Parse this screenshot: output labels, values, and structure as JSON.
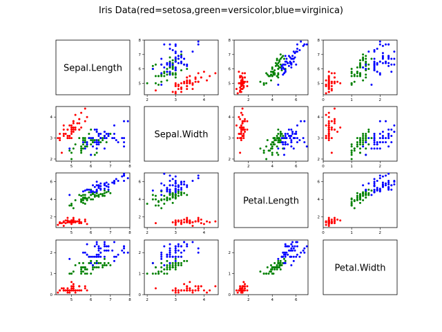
{
  "chart_data": {
    "type": "scatter",
    "title": "Iris Data(red=setosa,green=versicolor,blue=virginica)",
    "variables": [
      {
        "name": "Sepal.Length",
        "range": [
          4.2,
          8.0
        ],
        "ticks": [
          5,
          6,
          7,
          8
        ]
      },
      {
        "name": "Sepal.Width",
        "range": [
          1.9,
          4.5
        ],
        "ticks": [
          2,
          3,
          4
        ]
      },
      {
        "name": "Petal.Length",
        "range": [
          0.8,
          7.0
        ],
        "ticks": [
          2,
          4,
          6
        ]
      },
      {
        "name": "Petal.Width",
        "range": [
          0.0,
          2.6
        ],
        "ticks": [
          0,
          1,
          2
        ]
      }
    ],
    "species_colors": {
      "setosa": "#ff0000",
      "versicolor": "#008000",
      "virginica": "#0000ff"
    },
    "series": [
      {
        "name": "setosa",
        "color": "#ff0000",
        "rows": [
          [
            5.1,
            3.5,
            1.4,
            0.2
          ],
          [
            4.9,
            3.0,
            1.4,
            0.2
          ],
          [
            4.7,
            3.2,
            1.3,
            0.2
          ],
          [
            4.6,
            3.1,
            1.5,
            0.2
          ],
          [
            5.0,
            3.6,
            1.4,
            0.2
          ],
          [
            5.4,
            3.9,
            1.7,
            0.4
          ],
          [
            4.6,
            3.4,
            1.4,
            0.3
          ],
          [
            5.0,
            3.4,
            1.5,
            0.2
          ],
          [
            4.4,
            2.9,
            1.4,
            0.2
          ],
          [
            4.9,
            3.1,
            1.5,
            0.1
          ],
          [
            5.4,
            3.7,
            1.5,
            0.2
          ],
          [
            4.8,
            3.4,
            1.6,
            0.2
          ],
          [
            4.8,
            3.0,
            1.4,
            0.1
          ],
          [
            4.3,
            3.0,
            1.1,
            0.1
          ],
          [
            5.8,
            4.0,
            1.2,
            0.2
          ],
          [
            5.7,
            4.4,
            1.5,
            0.4
          ],
          [
            5.4,
            3.9,
            1.3,
            0.4
          ],
          [
            5.1,
            3.5,
            1.4,
            0.3
          ],
          [
            5.7,
            3.8,
            1.7,
            0.3
          ],
          [
            5.1,
            3.8,
            1.5,
            0.3
          ],
          [
            5.4,
            3.4,
            1.7,
            0.2
          ],
          [
            5.1,
            3.7,
            1.5,
            0.4
          ],
          [
            4.6,
            3.6,
            1.0,
            0.2
          ],
          [
            5.1,
            3.3,
            1.7,
            0.5
          ],
          [
            4.8,
            3.4,
            1.9,
            0.2
          ],
          [
            5.0,
            3.0,
            1.6,
            0.2
          ],
          [
            5.0,
            3.4,
            1.6,
            0.4
          ],
          [
            5.2,
            3.5,
            1.5,
            0.2
          ],
          [
            5.2,
            3.4,
            1.4,
            0.2
          ],
          [
            4.7,
            3.2,
            1.6,
            0.2
          ],
          [
            4.8,
            3.1,
            1.6,
            0.2
          ],
          [
            5.4,
            3.4,
            1.5,
            0.4
          ],
          [
            5.2,
            4.1,
            1.5,
            0.1
          ],
          [
            5.5,
            4.2,
            1.4,
            0.2
          ],
          [
            4.9,
            3.1,
            1.5,
            0.2
          ],
          [
            5.0,
            3.2,
            1.2,
            0.2
          ],
          [
            5.5,
            3.5,
            1.3,
            0.2
          ],
          [
            4.9,
            3.6,
            1.4,
            0.1
          ],
          [
            4.4,
            3.0,
            1.3,
            0.2
          ],
          [
            5.1,
            3.4,
            1.5,
            0.2
          ],
          [
            5.0,
            3.5,
            1.3,
            0.3
          ],
          [
            4.5,
            2.3,
            1.3,
            0.3
          ],
          [
            4.4,
            3.2,
            1.3,
            0.2
          ],
          [
            5.0,
            3.5,
            1.6,
            0.6
          ],
          [
            5.1,
            3.8,
            1.9,
            0.4
          ],
          [
            4.8,
            3.0,
            1.4,
            0.3
          ],
          [
            5.1,
            3.8,
            1.6,
            0.2
          ],
          [
            4.6,
            3.2,
            1.4,
            0.2
          ],
          [
            5.3,
            3.7,
            1.5,
            0.2
          ],
          [
            5.0,
            3.3,
            1.4,
            0.2
          ]
        ]
      },
      {
        "name": "versicolor",
        "color": "#008000",
        "rows": [
          [
            7.0,
            3.2,
            4.7,
            1.4
          ],
          [
            6.4,
            3.2,
            4.5,
            1.5
          ],
          [
            6.9,
            3.1,
            4.9,
            1.5
          ],
          [
            5.5,
            2.3,
            4.0,
            1.3
          ],
          [
            6.5,
            2.8,
            4.6,
            1.5
          ],
          [
            5.7,
            2.8,
            4.5,
            1.3
          ],
          [
            6.3,
            3.3,
            4.7,
            1.6
          ],
          [
            4.9,
            2.4,
            3.3,
            1.0
          ],
          [
            6.6,
            2.9,
            4.6,
            1.3
          ],
          [
            5.2,
            2.7,
            3.9,
            1.4
          ],
          [
            5.0,
            2.0,
            3.5,
            1.0
          ],
          [
            5.9,
            3.0,
            4.2,
            1.5
          ],
          [
            6.0,
            2.2,
            4.0,
            1.0
          ],
          [
            6.1,
            2.9,
            4.7,
            1.4
          ],
          [
            5.6,
            2.9,
            3.6,
            1.3
          ],
          [
            6.7,
            3.1,
            4.4,
            1.4
          ],
          [
            5.6,
            3.0,
            4.5,
            1.5
          ],
          [
            5.8,
            2.7,
            4.1,
            1.0
          ],
          [
            6.2,
            2.2,
            4.5,
            1.5
          ],
          [
            5.6,
            2.5,
            3.9,
            1.1
          ],
          [
            5.9,
            3.2,
            4.8,
            1.8
          ],
          [
            6.1,
            2.8,
            4.0,
            1.3
          ],
          [
            6.3,
            2.5,
            4.9,
            1.5
          ],
          [
            6.1,
            2.8,
            4.7,
            1.2
          ],
          [
            6.4,
            2.9,
            4.3,
            1.3
          ],
          [
            6.6,
            3.0,
            4.4,
            1.4
          ],
          [
            6.8,
            2.8,
            4.8,
            1.4
          ],
          [
            6.7,
            3.0,
            5.0,
            1.7
          ],
          [
            6.0,
            2.9,
            4.5,
            1.5
          ],
          [
            5.7,
            2.6,
            3.5,
            1.0
          ],
          [
            5.5,
            2.4,
            3.8,
            1.1
          ],
          [
            5.5,
            2.4,
            3.7,
            1.0
          ],
          [
            5.8,
            2.7,
            3.9,
            1.2
          ],
          [
            6.0,
            2.7,
            5.1,
            1.6
          ],
          [
            5.4,
            3.0,
            4.5,
            1.5
          ],
          [
            6.0,
            3.4,
            4.5,
            1.6
          ],
          [
            6.7,
            3.1,
            4.7,
            1.5
          ],
          [
            6.3,
            2.3,
            4.4,
            1.3
          ],
          [
            5.6,
            3.0,
            4.1,
            1.3
          ],
          [
            5.5,
            2.5,
            4.0,
            1.3
          ],
          [
            5.5,
            2.6,
            4.4,
            1.2
          ],
          [
            6.1,
            3.0,
            4.6,
            1.4
          ],
          [
            5.8,
            2.6,
            4.0,
            1.2
          ],
          [
            5.0,
            2.3,
            3.3,
            1.0
          ],
          [
            5.6,
            2.7,
            4.2,
            1.3
          ],
          [
            5.7,
            3.0,
            4.2,
            1.2
          ],
          [
            5.7,
            2.9,
            4.2,
            1.3
          ],
          [
            6.2,
            2.9,
            4.3,
            1.3
          ],
          [
            5.1,
            2.5,
            3.0,
            1.1
          ],
          [
            5.7,
            2.8,
            4.1,
            1.3
          ]
        ]
      },
      {
        "name": "virginica",
        "color": "#0000ff",
        "rows": [
          [
            6.3,
            3.3,
            6.0,
            2.5
          ],
          [
            5.8,
            2.7,
            5.1,
            1.9
          ],
          [
            7.1,
            3.0,
            5.9,
            2.1
          ],
          [
            6.3,
            2.9,
            5.6,
            1.8
          ],
          [
            6.5,
            3.0,
            5.8,
            2.2
          ],
          [
            7.6,
            3.0,
            6.6,
            2.1
          ],
          [
            4.9,
            2.5,
            4.5,
            1.7
          ],
          [
            7.3,
            2.9,
            6.3,
            1.8
          ],
          [
            6.7,
            2.5,
            5.8,
            1.8
          ],
          [
            7.2,
            3.6,
            6.1,
            2.5
          ],
          [
            6.5,
            3.2,
            5.1,
            2.0
          ],
          [
            6.4,
            2.7,
            5.3,
            1.9
          ],
          [
            6.8,
            3.0,
            5.5,
            2.1
          ],
          [
            5.7,
            2.5,
            5.0,
            2.0
          ],
          [
            5.8,
            2.8,
            5.1,
            2.4
          ],
          [
            6.4,
            3.2,
            5.3,
            2.3
          ],
          [
            6.5,
            3.0,
            5.5,
            1.8
          ],
          [
            7.7,
            3.8,
            6.7,
            2.2
          ],
          [
            7.7,
            2.6,
            6.9,
            2.3
          ],
          [
            6.0,
            2.2,
            5.0,
            1.5
          ],
          [
            6.9,
            3.2,
            5.7,
            2.3
          ],
          [
            5.6,
            2.8,
            4.9,
            2.0
          ],
          [
            7.7,
            2.8,
            6.7,
            2.0
          ],
          [
            6.3,
            2.7,
            4.9,
            1.8
          ],
          [
            6.7,
            3.3,
            5.7,
            2.1
          ],
          [
            7.2,
            3.2,
            6.0,
            1.8
          ],
          [
            6.2,
            2.8,
            4.8,
            1.8
          ],
          [
            6.1,
            3.0,
            4.9,
            1.8
          ],
          [
            6.4,
            2.8,
            5.6,
            2.1
          ],
          [
            7.2,
            3.0,
            5.8,
            1.6
          ],
          [
            7.4,
            2.8,
            6.1,
            1.9
          ],
          [
            7.9,
            3.8,
            6.4,
            2.0
          ],
          [
            6.4,
            2.8,
            5.6,
            2.2
          ],
          [
            6.3,
            2.8,
            5.1,
            1.5
          ],
          [
            6.1,
            2.6,
            5.6,
            1.4
          ],
          [
            7.7,
            3.0,
            6.1,
            2.3
          ],
          [
            6.3,
            3.4,
            5.6,
            2.4
          ],
          [
            6.4,
            3.1,
            5.5,
            1.8
          ],
          [
            6.0,
            3.0,
            4.8,
            1.8
          ],
          [
            6.9,
            3.1,
            5.4,
            2.1
          ],
          [
            6.7,
            3.1,
            5.6,
            2.4
          ],
          [
            6.9,
            3.1,
            5.1,
            2.3
          ],
          [
            5.8,
            2.7,
            5.1,
            1.9
          ],
          [
            6.8,
            3.2,
            5.9,
            2.3
          ],
          [
            6.7,
            3.3,
            5.7,
            2.5
          ],
          [
            6.7,
            3.0,
            5.2,
            2.3
          ],
          [
            6.3,
            2.5,
            5.0,
            1.9
          ],
          [
            6.5,
            3.0,
            5.2,
            2.0
          ],
          [
            6.2,
            3.4,
            5.4,
            2.3
          ],
          [
            5.9,
            3.0,
            5.1,
            1.8
          ]
        ]
      }
    ],
    "grid": false,
    "legend": "none"
  }
}
